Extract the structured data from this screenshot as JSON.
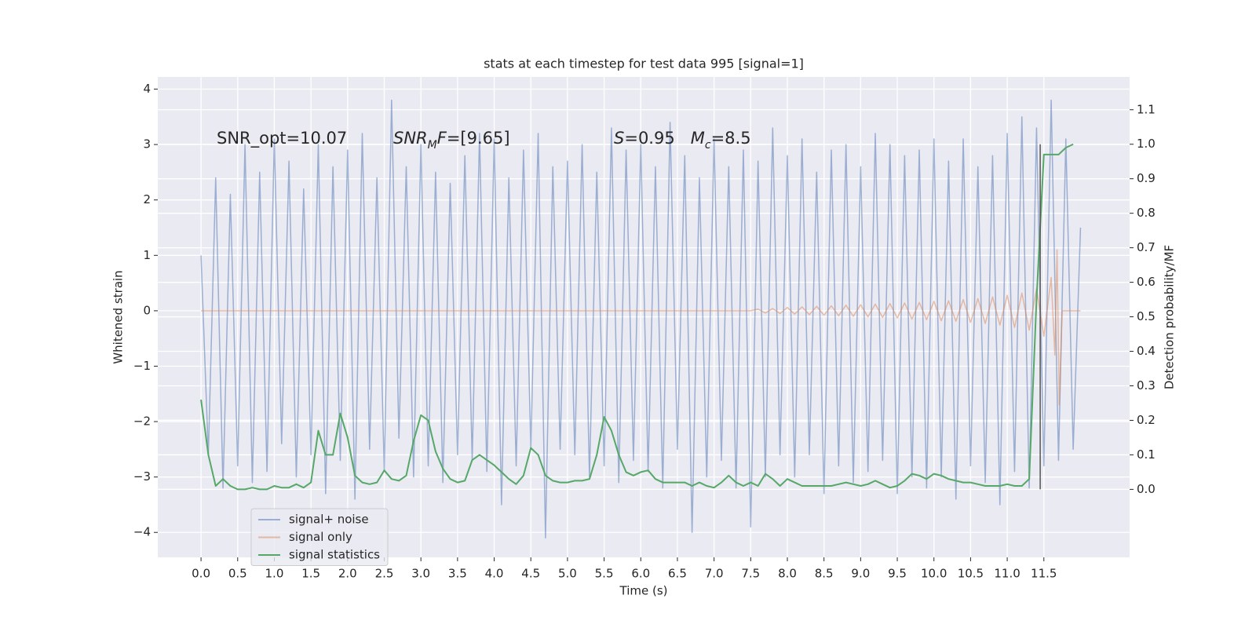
{
  "chart_data": {
    "type": "line",
    "title": "stats at each timestep for test data 995 [signal=1]",
    "xlabel": "Time (s)",
    "ylabel": "Whitened strain",
    "y2label": "Detection probability/MF",
    "xlim": [
      -0.59,
      12.67
    ],
    "ylim": [
      -4.45,
      4.22
    ],
    "y2lim": [
      -0.197,
      1.195
    ],
    "xticks": [
      {
        "value": 0.0,
        "label": "0.0"
      },
      {
        "value": 0.5,
        "label": "0.5"
      },
      {
        "value": 1.0,
        "label": "1.0"
      },
      {
        "value": 1.5,
        "label": "1.5"
      },
      {
        "value": 2.0,
        "label": "2.0"
      },
      {
        "value": 2.5,
        "label": "2.5"
      },
      {
        "value": 3.0,
        "label": "3.0"
      },
      {
        "value": 3.5,
        "label": "3.5"
      },
      {
        "value": 4.0,
        "label": "4.0"
      },
      {
        "value": 4.5,
        "label": "4.5"
      },
      {
        "value": 5.0,
        "label": "5.0"
      },
      {
        "value": 5.5,
        "label": "5.5"
      },
      {
        "value": 6.0,
        "label": "6.0"
      },
      {
        "value": 6.5,
        "label": "6.5"
      },
      {
        "value": 7.0,
        "label": "7.0"
      },
      {
        "value": 7.5,
        "label": "7.5"
      },
      {
        "value": 8.0,
        "label": "8.0"
      },
      {
        "value": 8.5,
        "label": "8.5"
      },
      {
        "value": 9.0,
        "label": "9.0"
      },
      {
        "value": 9.5,
        "label": "9.5"
      },
      {
        "value": 10.0,
        "label": "10.0"
      },
      {
        "value": 10.5,
        "label": "10.5"
      },
      {
        "value": 11.0,
        "label": "11.0"
      },
      {
        "value": 11.5,
        "label": "11.5"
      }
    ],
    "yticks": [
      {
        "value": -4,
        "label": "−4"
      },
      {
        "value": -3,
        "label": "−3"
      },
      {
        "value": -2,
        "label": "−2"
      },
      {
        "value": -1,
        "label": "−1"
      },
      0,
      1,
      2,
      3,
      4
    ],
    "y2ticks": [
      {
        "value": 0.0,
        "label": "0.0"
      },
      {
        "value": 0.1,
        "label": "0.1"
      },
      {
        "value": 0.2,
        "label": "0.2"
      },
      {
        "value": 0.3,
        "label": "0.3"
      },
      {
        "value": 0.4,
        "label": "0.4"
      },
      {
        "value": 0.5,
        "label": "0.5"
      },
      {
        "value": 0.6,
        "label": "0.6"
      },
      {
        "value": 0.7,
        "label": "0.7"
      },
      {
        "value": 0.8,
        "label": "0.8"
      },
      {
        "value": 0.9,
        "label": "0.9"
      },
      {
        "value": 1.0,
        "label": "1.0"
      },
      {
        "value": 1.1,
        "label": "1.1"
      }
    ],
    "grid": true,
    "legend": "lower left",
    "annotations": [
      [
        {
          "text": "SNR_opt=10.07"
        }
      ],
      [
        {
          "text": "SNR",
          "italic": true
        },
        {
          "text": "M",
          "italic": true,
          "sub": true
        },
        {
          "text": "F",
          "italic": true
        },
        {
          "text": "=[9.65]"
        }
      ],
      [
        {
          "text": "S",
          "italic": true
        },
        {
          "text": "=0.95   "
        },
        {
          "text": "M",
          "italic": true
        },
        {
          "text": "c",
          "italic": true,
          "sub": true
        },
        {
          "text": "=8.5"
        }
      ]
    ],
    "vline": {
      "x": 11.45,
      "y2range": [
        0.0,
        1.0
      ],
      "color": "#555555"
    },
    "series": [
      {
        "name": "signal+ noise",
        "color": "#4c72b0",
        "alpha": 0.5,
        "x": [
          0.0,
          0.1,
          0.2,
          0.3,
          0.4,
          0.5,
          0.6,
          0.7,
          0.8,
          0.9,
          1.0,
          1.1,
          1.2,
          1.3,
          1.4,
          1.5,
          1.6,
          1.7,
          1.8,
          1.9,
          2.0,
          2.1,
          2.2,
          2.3,
          2.4,
          2.5,
          2.6,
          2.7,
          2.8,
          2.9,
          3.0,
          3.1,
          3.2,
          3.3,
          3.4,
          3.5,
          3.6,
          3.7,
          3.8,
          3.9,
          4.0,
          4.1,
          4.2,
          4.3,
          4.4,
          4.5,
          4.6,
          4.7,
          4.8,
          4.9,
          5.0,
          5.1,
          5.2,
          5.3,
          5.4,
          5.5,
          5.6,
          5.7,
          5.8,
          5.9,
          6.0,
          6.1,
          6.2,
          6.3,
          6.4,
          6.5,
          6.6,
          6.7,
          6.8,
          6.9,
          7.0,
          7.1,
          7.2,
          7.3,
          7.4,
          7.5,
          7.6,
          7.7,
          7.8,
          7.9,
          8.0,
          8.1,
          8.2,
          8.3,
          8.4,
          8.5,
          8.6,
          8.7,
          8.8,
          8.9,
          9.0,
          9.1,
          9.2,
          9.3,
          9.4,
          9.5,
          9.6,
          9.7,
          9.8,
          9.9,
          10.0,
          10.1,
          10.2,
          10.3,
          10.4,
          10.5,
          10.6,
          10.7,
          10.8,
          10.9,
          11.0,
          11.1,
          11.2,
          11.3,
          11.4,
          11.5,
          11.6,
          11.7,
          11.8,
          11.9,
          12.0
        ],
        "values": [
          1.0,
          -2.6,
          2.4,
          -3.2,
          2.1,
          -2.8,
          3.0,
          -3.1,
          2.5,
          -2.9,
          3.1,
          -2.4,
          2.7,
          -3.0,
          2.2,
          -2.6,
          3.0,
          -3.3,
          2.6,
          -2.7,
          2.9,
          -3.4,
          3.2,
          -2.5,
          2.4,
          -2.9,
          3.8,
          -2.3,
          2.6,
          -3.0,
          3.0,
          -2.8,
          2.5,
          -3.1,
          2.3,
          -2.6,
          2.8,
          -2.7,
          3.2,
          -2.9,
          3.1,
          -3.5,
          2.4,
          -2.8,
          2.9,
          -2.5,
          3.2,
          -4.1,
          2.6,
          -2.5,
          2.7,
          -2.6,
          3.0,
          -3.0,
          2.5,
          -2.8,
          3.3,
          -3.1,
          2.9,
          -2.7,
          3.0,
          -2.9,
          2.6,
          -3.2,
          3.4,
          -2.5,
          2.8,
          -4.0,
          2.4,
          -3.0,
          3.1,
          -2.7,
          2.6,
          -3.2,
          2.9,
          -3.9,
          2.7,
          -3.0,
          3.3,
          -2.6,
          2.8,
          -3.0,
          3.1,
          -2.6,
          2.5,
          -3.3,
          2.9,
          -2.8,
          3.0,
          -3.1,
          2.6,
          -2.9,
          3.2,
          -2.7,
          3.0,
          -3.3,
          2.8,
          -3.0,
          2.9,
          -3.2,
          3.1,
          -3.0,
          2.7,
          -3.4,
          3.1,
          -2.8,
          2.6,
          -3.1,
          2.8,
          -3.5,
          3.2,
          -2.9,
          3.5,
          -3.2,
          3.3,
          -2.8,
          3.8,
          -2.7,
          3.1,
          -2.5,
          1.5
        ]
      },
      {
        "name": "signal only",
        "color": "#dd8452",
        "alpha": 0.5,
        "x": [
          0.0,
          7.5,
          7.6,
          7.7,
          7.8,
          7.9,
          8.0,
          8.1,
          8.2,
          8.3,
          8.4,
          8.5,
          8.6,
          8.7,
          8.8,
          8.9,
          9.0,
          9.1,
          9.2,
          9.3,
          9.4,
          9.5,
          9.6,
          9.7,
          9.8,
          9.9,
          10.0,
          10.1,
          10.2,
          10.3,
          10.4,
          10.5,
          10.6,
          10.7,
          10.8,
          10.9,
          11.0,
          11.1,
          11.2,
          11.3,
          11.4,
          11.5,
          11.6,
          11.65,
          11.68,
          11.71,
          11.75,
          12.0
        ],
        "values": [
          0,
          0,
          0.03,
          -0.04,
          0.04,
          -0.05,
          0.06,
          -0.06,
          0.07,
          -0.07,
          0.08,
          -0.08,
          0.09,
          -0.09,
          0.1,
          -0.1,
          0.11,
          -0.11,
          0.12,
          -0.12,
          0.13,
          -0.13,
          0.14,
          -0.15,
          0.15,
          -0.16,
          0.17,
          -0.18,
          0.18,
          -0.19,
          0.2,
          -0.21,
          0.22,
          -0.23,
          0.25,
          -0.26,
          0.28,
          -0.3,
          0.32,
          -0.35,
          0.4,
          -0.46,
          0.6,
          -0.8,
          1.1,
          -1.7,
          0,
          0
        ]
      },
      {
        "name": "signal statistics",
        "color": "#55a868",
        "alpha": 1,
        "axis": "y2",
        "x": [
          0.0,
          0.1,
          0.2,
          0.3,
          0.4,
          0.5,
          0.6,
          0.7,
          0.8,
          0.9,
          1.0,
          1.1,
          1.2,
          1.3,
          1.4,
          1.5,
          1.6,
          1.7,
          1.8,
          1.9,
          2.0,
          2.1,
          2.2,
          2.3,
          2.4,
          2.5,
          2.6,
          2.7,
          2.8,
          2.9,
          3.0,
          3.1,
          3.2,
          3.3,
          3.4,
          3.5,
          3.6,
          3.7,
          3.8,
          3.9,
          4.0,
          4.1,
          4.2,
          4.3,
          4.4,
          4.5,
          4.6,
          4.7,
          4.8,
          4.9,
          5.0,
          5.1,
          5.2,
          5.3,
          5.4,
          5.5,
          5.6,
          5.7,
          5.8,
          5.9,
          6.0,
          6.1,
          6.2,
          6.3,
          6.4,
          6.5,
          6.6,
          6.7,
          6.8,
          6.9,
          7.0,
          7.1,
          7.2,
          7.3,
          7.4,
          7.5,
          7.6,
          7.7,
          7.8,
          7.9,
          8.0,
          8.1,
          8.2,
          8.3,
          8.4,
          8.5,
          8.6,
          8.7,
          8.8,
          8.9,
          9.0,
          9.1,
          9.2,
          9.3,
          9.4,
          9.5,
          9.6,
          9.7,
          9.8,
          9.9,
          10.0,
          10.1,
          10.2,
          10.3,
          10.4,
          10.5,
          10.6,
          10.7,
          10.8,
          10.9,
          11.0,
          11.1,
          11.2,
          11.3,
          11.4,
          11.5,
          11.6,
          11.7,
          11.8,
          11.9
        ],
        "values": [
          0.26,
          0.1,
          0.01,
          0.03,
          0.01,
          0.0,
          0.0,
          0.005,
          0.0,
          0.0,
          0.01,
          0.005,
          0.005,
          0.015,
          0.005,
          0.02,
          0.17,
          0.1,
          0.1,
          0.22,
          0.15,
          0.04,
          0.02,
          0.015,
          0.02,
          0.055,
          0.03,
          0.025,
          0.04,
          0.14,
          0.215,
          0.2,
          0.11,
          0.06,
          0.03,
          0.02,
          0.025,
          0.085,
          0.1,
          0.085,
          0.07,
          0.05,
          0.03,
          0.015,
          0.04,
          0.12,
          0.1,
          0.04,
          0.025,
          0.02,
          0.02,
          0.025,
          0.025,
          0.03,
          0.1,
          0.21,
          0.17,
          0.1,
          0.05,
          0.04,
          0.05,
          0.055,
          0.03,
          0.02,
          0.02,
          0.02,
          0.02,
          0.01,
          0.02,
          0.01,
          0.005,
          0.02,
          0.04,
          0.02,
          0.01,
          0.02,
          0.01,
          0.045,
          0.03,
          0.01,
          0.03,
          0.02,
          0.01,
          0.01,
          0.01,
          0.01,
          0.01,
          0.015,
          0.02,
          0.015,
          0.01,
          0.015,
          0.025,
          0.015,
          0.005,
          0.01,
          0.025,
          0.045,
          0.04,
          0.03,
          0.045,
          0.04,
          0.03,
          0.025,
          0.02,
          0.02,
          0.015,
          0.01,
          0.01,
          0.01,
          0.015,
          0.01,
          0.01,
          0.03,
          0.55,
          0.97,
          0.97,
          0.97,
          0.99,
          1.0
        ]
      }
    ]
  }
}
